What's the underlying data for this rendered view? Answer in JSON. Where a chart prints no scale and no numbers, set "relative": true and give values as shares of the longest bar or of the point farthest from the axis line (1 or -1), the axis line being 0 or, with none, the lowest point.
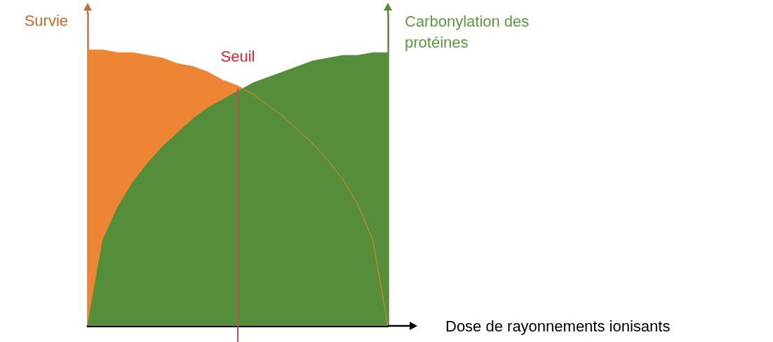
{
  "chart_data": {
    "type": "area",
    "relative": true,
    "xlabel": "Dose de rayonnements ionisants",
    "ylabel": "Survie",
    "y2label": "Carbonylation des protéines",
    "categories": [
      null,
      null,
      null,
      null,
      null,
      null,
      null,
      null,
      null,
      null,
      null,
      null,
      null,
      null,
      null,
      null,
      null,
      null,
      null,
      null,
      null
    ],
    "series": [
      {
        "color": "#ed8535",
        "values": [
          1,
          1,
          0.99,
          0.99,
          0.98,
          0.97,
          0.95,
          0.94,
          0.92,
          0.89,
          0.87,
          0.84,
          0.8,
          0.76,
          0.71,
          0.66,
          0.6,
          0.53,
          0.44,
          0.31,
          0
        ]
      },
      {
        "color": "#568d3a",
        "values": [
          0,
          0.31,
          0.43,
          0.52,
          0.59,
          0.65,
          0.7,
          0.75,
          0.79,
          0.82,
          0.85,
          0.88,
          0.9,
          0.92,
          0.94,
          0.96,
          0.97,
          0.98,
          0.98,
          0.99,
          0.99
        ]
      }
    ],
    "annotations": [
      "Seuil"
    ],
    "grid": false
  }
}
